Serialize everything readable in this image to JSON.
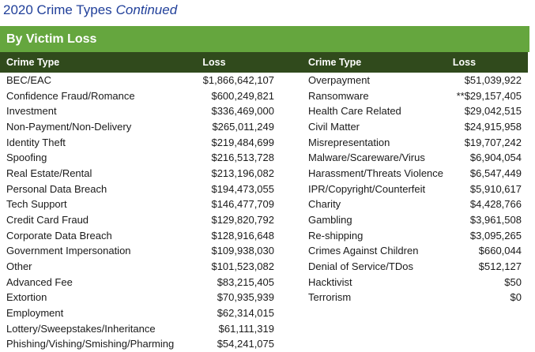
{
  "title": {
    "text": "2020 Crime Types",
    "continued": "Continued"
  },
  "section": {
    "title": "By Victim Loss"
  },
  "colors": {
    "title_blue": "#21409A",
    "banner_green": "#65A63E",
    "header_green": "#304A1C",
    "body_text": "#1A1A1A"
  },
  "table": {
    "headers": [
      "Crime Type",
      "Loss",
      "Crime Type",
      "Loss"
    ],
    "left_rows": [
      {
        "type": "BEC/EAC",
        "loss": "$1,866,642,107"
      },
      {
        "type": "Confidence Fraud/Romance",
        "loss": "$600,249,821"
      },
      {
        "type": "Investment",
        "loss": "$336,469,000"
      },
      {
        "type": "Non-Payment/Non-Delivery",
        "loss": "$265,011,249"
      },
      {
        "type": "Identity Theft",
        "loss": "$219,484,699"
      },
      {
        "type": "Spoofing",
        "loss": "$216,513,728"
      },
      {
        "type": "Real Estate/Rental",
        "loss": "$213,196,082"
      },
      {
        "type": "Personal Data Breach",
        "loss": "$194,473,055"
      },
      {
        "type": "Tech Support",
        "loss": "$146,477,709"
      },
      {
        "type": "Credit Card Fraud",
        "loss": "$129,820,792"
      },
      {
        "type": "Corporate Data Breach",
        "loss": "$128,916,648"
      },
      {
        "type": "Government Impersonation",
        "loss": "$109,938,030"
      },
      {
        "type": "Other",
        "loss": "$101,523,082"
      },
      {
        "type": "Advanced Fee",
        "loss": "$83,215,405"
      },
      {
        "type": "Extortion",
        "loss": "$70,935,939"
      },
      {
        "type": "Employment",
        "loss": "$62,314,015"
      },
      {
        "type": "Lottery/Sweepstakes/Inheritance",
        "loss": "$61,111,319"
      },
      {
        "type": "Phishing/Vishing/Smishing/Pharming",
        "loss": "$54,241,075"
      }
    ],
    "right_rows": [
      {
        "type": "Overpayment",
        "loss": "$51,039,922"
      },
      {
        "type": "Ransomware",
        "loss": "**$29,157,405"
      },
      {
        "type": "Health Care Related",
        "loss": "$29,042,515"
      },
      {
        "type": "Civil Matter",
        "loss": "$24,915,958"
      },
      {
        "type": "Misrepresentation",
        "loss": "$19,707,242"
      },
      {
        "type": "Malware/Scareware/Virus",
        "loss": "$6,904,054"
      },
      {
        "type": "Harassment/Threats Violence",
        "loss": "$6,547,449"
      },
      {
        "type": "IPR/Copyright/Counterfeit",
        "loss": "$5,910,617"
      },
      {
        "type": "Charity",
        "loss": "$4,428,766"
      },
      {
        "type": "Gambling",
        "loss": "$3,961,508"
      },
      {
        "type": "Re-shipping",
        "loss": "$3,095,265"
      },
      {
        "type": "Crimes Against Children",
        "loss": "$660,044"
      },
      {
        "type": "Denial of Service/TDos",
        "loss": "$512,127"
      },
      {
        "type": "Hacktivist",
        "loss": "$50"
      },
      {
        "type": "Terrorism",
        "loss": "$0"
      }
    ]
  }
}
